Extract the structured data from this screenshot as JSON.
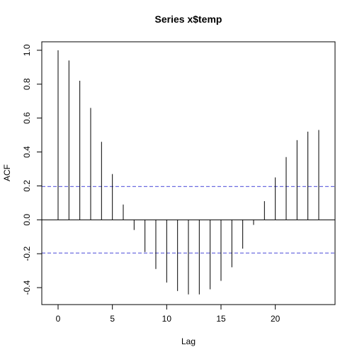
{
  "chart_data": {
    "type": "bar",
    "title": "Series  x$temp",
    "xlabel": "Lag",
    "ylabel": "ACF",
    "xlim": [
      -1.5,
      25.5
    ],
    "ylim": [
      -0.5,
      1.05
    ],
    "x_ticks": [
      0,
      5,
      10,
      15,
      20
    ],
    "x_tick_labels": [
      "0",
      "5",
      "10",
      "15",
      "20"
    ],
    "y_ticks": [
      -0.4,
      -0.2,
      0.0,
      0.2,
      0.4,
      0.6,
      0.8,
      1.0
    ],
    "y_tick_labels": [
      "-0.4",
      "-0.2",
      "0.0",
      "0.2",
      "0.4",
      "0.6",
      "0.8",
      "1.0"
    ],
    "lags": [
      0,
      1,
      2,
      3,
      4,
      5,
      6,
      7,
      8,
      9,
      10,
      11,
      12,
      13,
      14,
      15,
      16,
      17,
      18,
      19,
      20,
      21,
      22,
      23,
      24
    ],
    "acf": [
      1.0,
      0.94,
      0.82,
      0.66,
      0.46,
      0.27,
      0.09,
      -0.06,
      -0.19,
      -0.29,
      -0.37,
      -0.42,
      -0.44,
      -0.44,
      -0.41,
      -0.36,
      -0.28,
      -0.17,
      -0.03,
      0.11,
      0.25,
      0.37,
      0.47,
      0.52,
      0.53
    ],
    "confidence_bound": 0.196,
    "confidence_color": "#6d6ddf",
    "grid": false
  }
}
